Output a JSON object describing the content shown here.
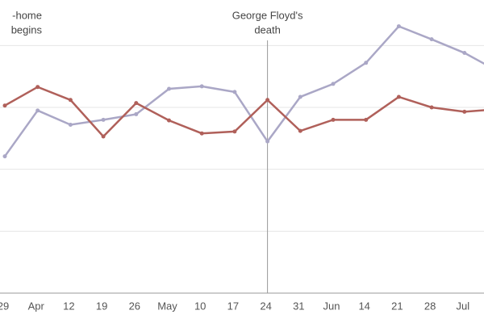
{
  "chart_data": {
    "type": "line",
    "annotations": [
      {
        "lines": [
          "-home",
          "begins"
        ],
        "category": 0
      },
      {
        "lines": [
          "George Floyd's",
          "death"
        ],
        "category": 8
      }
    ],
    "categories": [
      "29",
      "Apr",
      "12",
      "19",
      "26",
      "May",
      "10",
      "17",
      "24",
      "31",
      "Jun",
      "14",
      "21",
      "28",
      "Jul",
      null
    ],
    "series": [
      {
        "color": "#aaa7c6",
        "values": [
          2.21,
          2.95,
          2.72,
          2.8,
          2.89,
          3.3,
          3.34,
          3.25,
          2.45,
          3.17,
          3.38,
          3.72,
          4.31,
          4.1,
          3.88,
          3.59
        ]
      },
      {
        "color": "#b0605a",
        "values": [
          3.03,
          3.33,
          3.12,
          2.53,
          3.07,
          2.79,
          2.58,
          2.61,
          3.12,
          2.62,
          2.8,
          2.8,
          3.17,
          3.0,
          2.93,
          2.97
        ]
      }
    ],
    "ylim": [
      0,
      4.5
    ],
    "yticks": [
      1,
      2,
      3,
      4
    ],
    "grid": true
  }
}
